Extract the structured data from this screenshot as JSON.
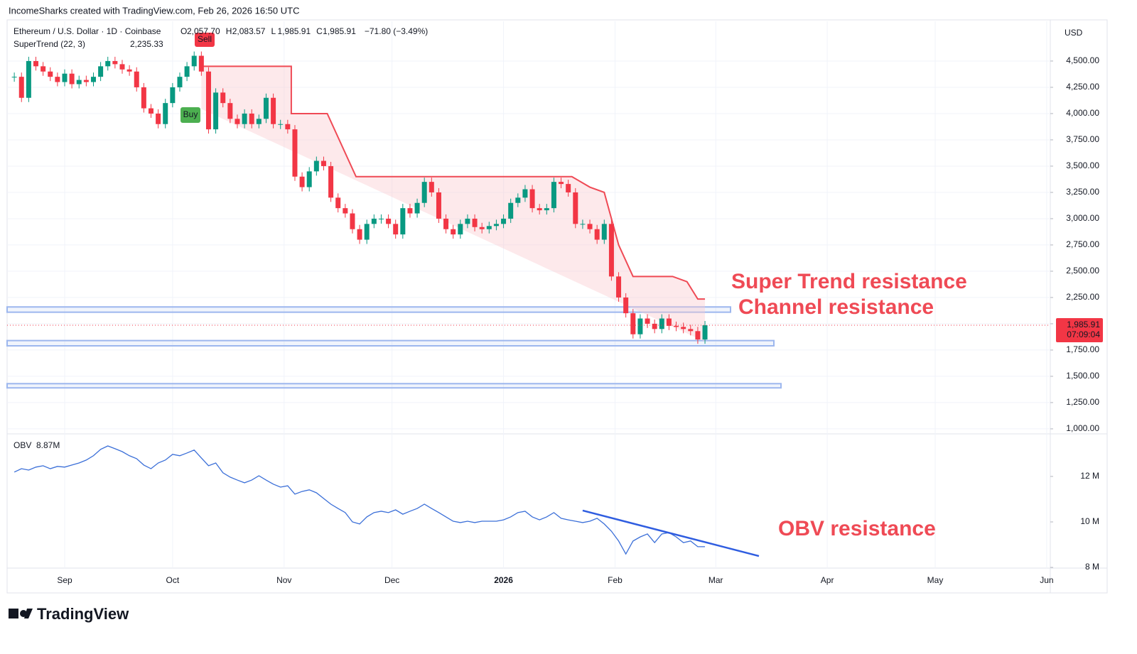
{
  "header": {
    "title": "IncomeSharks created with TradingView.com, Feb 26, 2026 16:50 UTC"
  },
  "footer": {
    "brand": "TradingView"
  },
  "chart_data": [
    {
      "type": "candlestick",
      "currency": "USD",
      "legend": {
        "symbol": "Ethereum / U.S. Dollar · 1D · Coinbase",
        "ohlc": [
          [
            "O",
            "2,057.70"
          ],
          [
            "H",
            "2,083.57"
          ],
          [
            "L",
            "1,985.91"
          ],
          [
            "C",
            "1,985.91"
          ]
        ],
        "change": "−71.80 (−3.49%)",
        "indicator": "SuperTrend (22, 3)",
        "indicator_value": "2,235.33"
      },
      "signals": [
        "Buy",
        "Sell"
      ],
      "xlim": [
        -4,
        286
      ],
      "xticks": [
        {
          "value": 12,
          "label": "Sep"
        },
        {
          "value": 42,
          "label": "Oct"
        },
        {
          "value": 73,
          "label": "Nov"
        },
        {
          "value": 103,
          "label": "Dec"
        },
        {
          "value": 134,
          "label": "2026"
        },
        {
          "value": 165,
          "label": "Feb"
        },
        {
          "value": 193,
          "label": "Mar"
        },
        {
          "value": 224,
          "label": "Apr"
        },
        {
          "value": 254,
          "label": "May"
        },
        {
          "value": 285,
          "label": "Jun"
        }
      ],
      "ylim": [
        959,
        4878
      ],
      "yticks": [
        {
          "value": 1000,
          "label": "1,000.00"
        },
        {
          "value": 1250,
          "label": "1,250.00"
        },
        {
          "value": 1500,
          "label": "1,500.00"
        },
        {
          "value": 1750,
          "label": "1,750.00"
        },
        {
          "value": 2000,
          "label": "2,000.00"
        },
        {
          "value": 2250,
          "label": "2,250.00"
        },
        {
          "value": 2500,
          "label": "2,500.00"
        },
        {
          "value": 2750,
          "label": "2,750.00"
        },
        {
          "value": 3000,
          "label": "3,000.00"
        },
        {
          "value": 3250,
          "label": "3,250.00"
        },
        {
          "value": 3500,
          "label": "3,500.00"
        },
        {
          "value": 3750,
          "label": "3,750.00"
        },
        {
          "value": 4000,
          "label": "4,000.00"
        },
        {
          "value": 4250,
          "label": "4,250.00"
        },
        {
          "value": 4500,
          "label": "4,500.00"
        }
      ],
      "grid": true,
      "up_color": "#089981",
      "down_color": "#f23645",
      "x": [
        -2,
        0,
        2,
        4,
        6,
        8,
        10,
        12,
        14,
        16,
        18,
        20,
        22,
        24,
        26,
        28,
        30,
        32,
        34,
        36,
        38,
        40,
        42,
        44,
        46,
        48,
        50,
        52,
        54,
        56,
        58,
        60,
        62,
        64,
        66,
        68,
        70,
        72,
        74,
        76,
        78,
        80,
        82,
        84,
        86,
        88,
        90,
        92,
        94,
        96,
        98,
        100,
        102,
        104,
        106,
        108,
        110,
        112,
        114,
        116,
        118,
        120,
        122,
        124,
        126,
        128,
        130,
        132,
        134,
        136,
        138,
        140,
        142,
        144,
        146,
        148,
        150,
        152,
        154,
        156,
        158,
        160,
        162,
        164,
        166,
        168,
        170,
        172,
        174,
        176,
        178,
        180,
        182,
        184,
        186,
        188,
        190
      ],
      "close": [
        4350,
        4150,
        4500,
        4450,
        4400,
        4350,
        4300,
        4380,
        4280,
        4320,
        4300,
        4350,
        4450,
        4500,
        4470,
        4420,
        4400,
        4250,
        4050,
        4000,
        3900,
        4100,
        4250,
        4350,
        4450,
        4550,
        4400,
        3850,
        4200,
        4100,
        3950,
        3900,
        4000,
        3900,
        3950,
        4150,
        3900,
        3900,
        3850,
        3400,
        3300,
        3450,
        3550,
        3500,
        3200,
        3100,
        3050,
        2900,
        2800,
        2950,
        3000,
        3000,
        2950,
        2850,
        3100,
        3050,
        3150,
        3350,
        3250,
        3000,
        2900,
        2850,
        2950,
        3000,
        2920,
        2900,
        2930,
        2950,
        3000,
        3150,
        3200,
        3280,
        3100,
        3080,
        3100,
        3350,
        3330,
        3250,
        2950,
        2950,
        2900,
        2800,
        2950,
        2450,
        2250,
        2100,
        1900,
        2050,
        2000,
        1950,
        2050,
        1980,
        1970,
        1950,
        1930,
        1850,
        1985.91
      ],
      "supertrend": {
        "color": "#ef4a55",
        "x": [
          50,
          75,
          75,
          85,
          93,
          153,
          158,
          162,
          166,
          170,
          181,
          185,
          188,
          190
        ],
        "values": [
          4450,
          4450,
          4000,
          4000,
          3400,
          3400,
          3300,
          3250,
          2750,
          2450,
          2450,
          2400,
          2235.33,
          2235.33
        ]
      },
      "zones": {
        "color": "#9db7ee",
        "levels": [
          [
            2160,
            2110
          ],
          [
            1840,
            1790
          ],
          [
            1430,
            1390
          ]
        ]
      },
      "last_price": {
        "value": 1985.91,
        "label": "1,985.91",
        "countdown": "07:09:04"
      },
      "annotations": [
        "Super Trend resistance",
        "Channel resistance"
      ]
    },
    {
      "type": "line",
      "name": "OBV",
      "value_label": "8.87M",
      "color": "#3b6fd8",
      "xlim": [
        -4,
        286
      ],
      "ylim": [
        7.97,
        13.84
      ],
      "yticks": [
        {
          "value": 8,
          "label": "8 M"
        },
        {
          "value": 10,
          "label": "10 M"
        },
        {
          "value": 12,
          "label": "12 M"
        }
      ],
      "x": [
        -2,
        0,
        2,
        4,
        6,
        8,
        10,
        12,
        14,
        16,
        18,
        20,
        22,
        24,
        26,
        28,
        30,
        32,
        34,
        36,
        38,
        40,
        42,
        44,
        46,
        48,
        50,
        52,
        54,
        56,
        58,
        60,
        62,
        64,
        66,
        68,
        70,
        72,
        74,
        76,
        78,
        80,
        82,
        84,
        86,
        88,
        90,
        92,
        94,
        96,
        98,
        100,
        102,
        104,
        106,
        108,
        110,
        112,
        114,
        116,
        118,
        120,
        122,
        124,
        126,
        128,
        130,
        132,
        134,
        136,
        138,
        140,
        142,
        144,
        146,
        148,
        150,
        152,
        154,
        156,
        158,
        160,
        162,
        164,
        166,
        168,
        170,
        172,
        174,
        176,
        178,
        180,
        182,
        184,
        186,
        188,
        190
      ],
      "values": [
        12.19,
        12.34,
        12.28,
        12.41,
        12.47,
        12.34,
        12.44,
        12.41,
        12.5,
        12.59,
        12.72,
        12.91,
        13.19,
        13.34,
        13.22,
        13.09,
        12.91,
        12.78,
        12.5,
        12.34,
        12.59,
        12.72,
        12.97,
        12.91,
        13.03,
        13.16,
        12.81,
        12.47,
        12.59,
        12.16,
        11.97,
        11.84,
        11.72,
        11.84,
        12.03,
        11.84,
        11.66,
        11.53,
        11.59,
        11.22,
        11.34,
        11.41,
        11.28,
        11.03,
        10.78,
        10.59,
        10.41,
        10,
        9.91,
        10.22,
        10.41,
        10.47,
        10.41,
        10.53,
        10.34,
        10.47,
        10.59,
        10.78,
        10.59,
        10.41,
        10.22,
        10.03,
        9.97,
        10.03,
        9.97,
        10.03,
        10.03,
        10.03,
        10.09,
        10.22,
        10.41,
        10.47,
        10.22,
        10.09,
        10.22,
        10.41,
        10.16,
        10.09,
        10.03,
        9.97,
        10.03,
        10.16,
        9.91,
        9.59,
        9.16,
        8.59,
        9.16,
        9.34,
        9.47,
        9.09,
        9.47,
        9.53,
        9.34,
        9.09,
        9.16,
        8.91,
        8.91
      ],
      "trendline": {
        "color": "#2f5de0",
        "x": [
          156,
          205
        ],
        "values": [
          10.5,
          8.5
        ]
      },
      "annotation": "OBV resistance"
    }
  ]
}
